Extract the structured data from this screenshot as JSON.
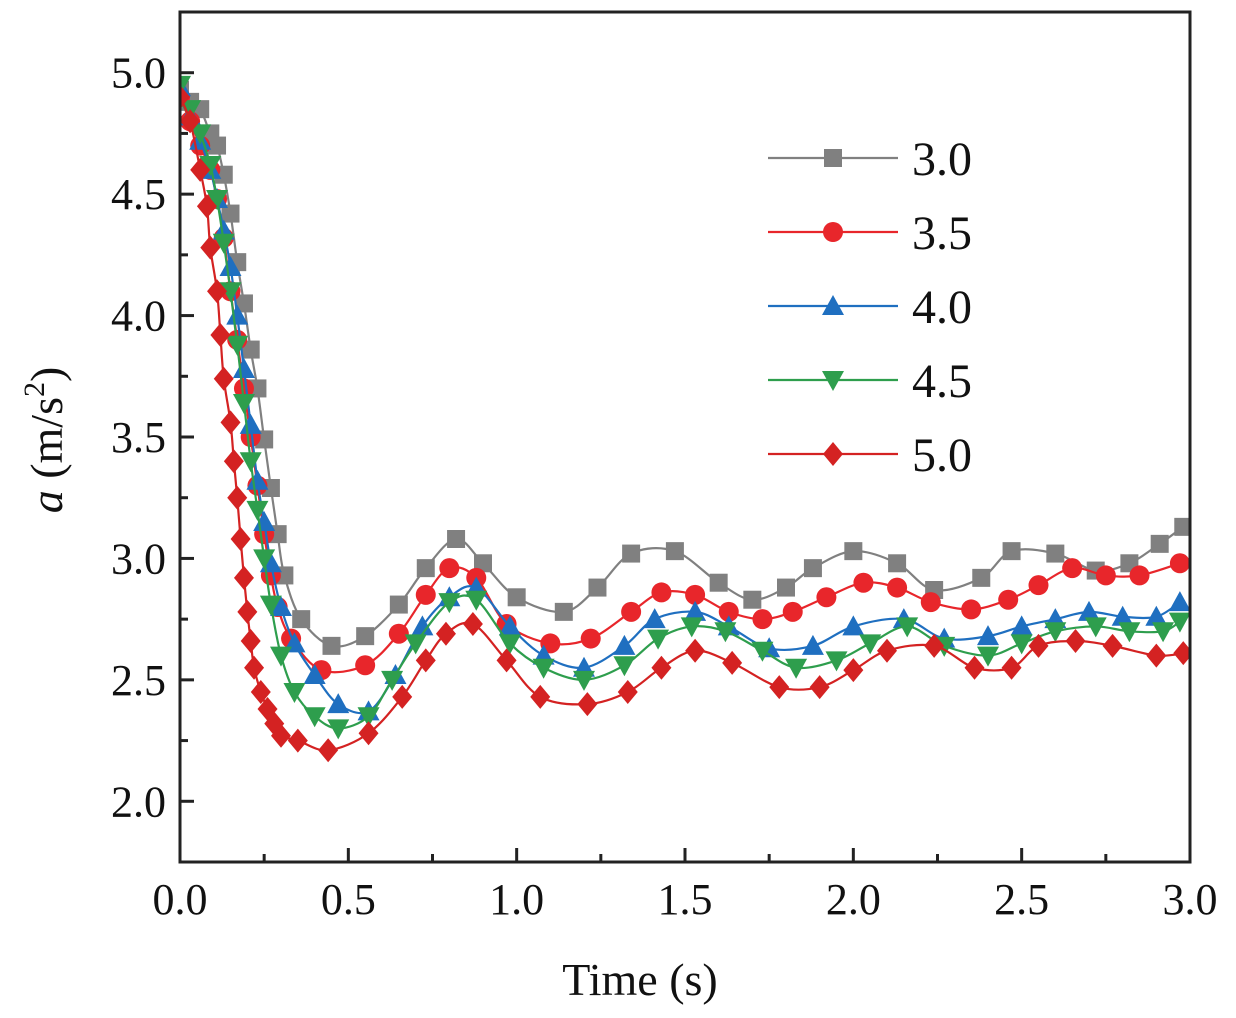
{
  "chart_data": {
    "type": "line",
    "title": "",
    "xlabel": "Time (s)",
    "ylabel_symbol": "a",
    "ylabel_unit_prefix": " (m/s",
    "ylabel_unit_exp": "2",
    "ylabel_unit_suffix": ")",
    "xlim": [
      0,
      3.0
    ],
    "ylim": [
      1.75,
      5.25
    ],
    "x_ticks": [
      0.0,
      0.5,
      1.0,
      1.5,
      2.0,
      2.5,
      3.0
    ],
    "x_tick_labels": [
      "0.0",
      "0.5",
      "1.0",
      "1.5",
      "2.0",
      "2.5",
      "3.0"
    ],
    "y_ticks": [
      2.0,
      2.5,
      3.0,
      3.5,
      4.0,
      4.5,
      5.0
    ],
    "y_tick_labels": [
      "2.0",
      "2.5",
      "3.0",
      "3.5",
      "4.0",
      "4.5",
      "5.0"
    ],
    "grid": false,
    "legend_position": "top-right",
    "series": [
      {
        "name": "3.0",
        "color": "#808080",
        "marker": "square",
        "x": [
          0.0,
          0.03,
          0.06,
          0.09,
          0.11,
          0.13,
          0.15,
          0.17,
          0.19,
          0.21,
          0.23,
          0.25,
          0.27,
          0.29,
          0.31,
          0.36,
          0.45,
          0.55,
          0.65,
          0.73,
          0.82,
          0.9,
          1.0,
          1.14,
          1.24,
          1.34,
          1.47,
          1.6,
          1.7,
          1.8,
          1.88,
          2.0,
          2.13,
          2.24,
          2.38,
          2.47,
          2.6,
          2.72,
          2.82,
          2.91,
          2.98
        ],
        "y": [
          4.93,
          4.88,
          4.85,
          4.75,
          4.7,
          4.58,
          4.42,
          4.22,
          4.05,
          3.86,
          3.7,
          3.49,
          3.29,
          3.1,
          2.93,
          2.75,
          2.64,
          2.68,
          2.81,
          2.96,
          3.08,
          2.98,
          2.84,
          2.78,
          2.88,
          3.02,
          3.03,
          2.9,
          2.83,
          2.88,
          2.96,
          3.03,
          2.98,
          2.87,
          2.92,
          3.03,
          3.02,
          2.95,
          2.98,
          3.06,
          3.13
        ]
      },
      {
        "name": "3.5",
        "color": "#e8262b",
        "marker": "circle",
        "x": [
          0.0,
          0.03,
          0.06,
          0.09,
          0.11,
          0.13,
          0.15,
          0.17,
          0.19,
          0.21,
          0.23,
          0.25,
          0.27,
          0.29,
          0.33,
          0.42,
          0.55,
          0.65,
          0.73,
          0.8,
          0.88,
          0.97,
          1.1,
          1.22,
          1.34,
          1.43,
          1.53,
          1.63,
          1.73,
          1.82,
          1.92,
          2.03,
          2.13,
          2.23,
          2.35,
          2.46,
          2.55,
          2.65,
          2.75,
          2.85,
          2.97
        ],
        "y": [
          4.9,
          4.8,
          4.7,
          4.6,
          4.48,
          4.32,
          4.1,
          3.9,
          3.7,
          3.5,
          3.3,
          3.1,
          2.93,
          2.8,
          2.67,
          2.54,
          2.56,
          2.69,
          2.85,
          2.96,
          2.92,
          2.73,
          2.65,
          2.67,
          2.78,
          2.86,
          2.85,
          2.78,
          2.75,
          2.78,
          2.84,
          2.9,
          2.88,
          2.82,
          2.79,
          2.83,
          2.89,
          2.96,
          2.93,
          2.93,
          2.98
        ]
      },
      {
        "name": "4.0",
        "color": "#1f6fc0",
        "marker": "triangle-up",
        "x": [
          0.0,
          0.03,
          0.06,
          0.09,
          0.11,
          0.13,
          0.15,
          0.17,
          0.19,
          0.21,
          0.23,
          0.25,
          0.27,
          0.3,
          0.34,
          0.4,
          0.47,
          0.56,
          0.64,
          0.72,
          0.8,
          0.88,
          0.98,
          1.08,
          1.2,
          1.32,
          1.41,
          1.53,
          1.63,
          1.75,
          1.88,
          2.0,
          2.15,
          2.27,
          2.4,
          2.5,
          2.6,
          2.7,
          2.8,
          2.9,
          2.97
        ],
        "y": [
          4.94,
          4.82,
          4.72,
          4.6,
          4.48,
          4.35,
          4.2,
          4.0,
          3.78,
          3.55,
          3.32,
          3.15,
          2.98,
          2.8,
          2.65,
          2.52,
          2.4,
          2.37,
          2.52,
          2.72,
          2.84,
          2.88,
          2.72,
          2.6,
          2.55,
          2.64,
          2.75,
          2.78,
          2.72,
          2.63,
          2.64,
          2.72,
          2.75,
          2.67,
          2.68,
          2.72,
          2.75,
          2.78,
          2.76,
          2.76,
          2.82
        ]
      },
      {
        "name": "4.5",
        "color": "#2e9e4d",
        "marker": "triangle-down",
        "x": [
          0.0,
          0.03,
          0.06,
          0.09,
          0.11,
          0.13,
          0.15,
          0.17,
          0.19,
          0.21,
          0.23,
          0.25,
          0.27,
          0.3,
          0.34,
          0.4,
          0.47,
          0.56,
          0.63,
          0.7,
          0.8,
          0.88,
          0.98,
          1.08,
          1.2,
          1.32,
          1.42,
          1.52,
          1.62,
          1.73,
          1.83,
          1.95,
          2.05,
          2.16,
          2.27,
          2.4,
          2.5,
          2.6,
          2.72,
          2.82,
          2.92,
          2.97
        ],
        "y": [
          4.95,
          4.85,
          4.75,
          4.62,
          4.48,
          4.3,
          4.1,
          3.88,
          3.64,
          3.4,
          3.2,
          3.0,
          2.81,
          2.6,
          2.45,
          2.35,
          2.3,
          2.35,
          2.5,
          2.65,
          2.82,
          2.83,
          2.65,
          2.55,
          2.5,
          2.56,
          2.67,
          2.72,
          2.7,
          2.62,
          2.55,
          2.58,
          2.65,
          2.72,
          2.64,
          2.6,
          2.65,
          2.7,
          2.72,
          2.7,
          2.7,
          2.74
        ]
      },
      {
        "name": "5.0",
        "color": "#d42222",
        "marker": "diamond",
        "x": [
          0.0,
          0.03,
          0.06,
          0.08,
          0.09,
          0.11,
          0.12,
          0.13,
          0.15,
          0.16,
          0.17,
          0.18,
          0.19,
          0.2,
          0.21,
          0.22,
          0.24,
          0.26,
          0.28,
          0.3,
          0.35,
          0.44,
          0.56,
          0.66,
          0.73,
          0.79,
          0.87,
          0.97,
          1.07,
          1.21,
          1.33,
          1.43,
          1.53,
          1.64,
          1.78,
          1.9,
          2.0,
          2.1,
          2.24,
          2.36,
          2.47,
          2.55,
          2.66,
          2.77,
          2.9,
          2.98
        ],
        "y": [
          4.9,
          4.8,
          4.6,
          4.45,
          4.28,
          4.1,
          3.92,
          3.74,
          3.56,
          3.4,
          3.25,
          3.08,
          2.92,
          2.78,
          2.66,
          2.55,
          2.45,
          2.38,
          2.32,
          2.27,
          2.25,
          2.21,
          2.28,
          2.43,
          2.58,
          2.69,
          2.73,
          2.58,
          2.43,
          2.4,
          2.45,
          2.55,
          2.62,
          2.57,
          2.47,
          2.47,
          2.54,
          2.62,
          2.64,
          2.55,
          2.55,
          2.64,
          2.66,
          2.64,
          2.6,
          2.61
        ]
      }
    ]
  }
}
